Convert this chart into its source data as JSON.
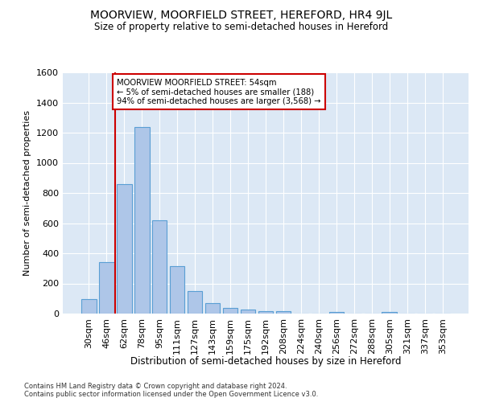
{
  "title": "MOORVIEW, MOORFIELD STREET, HEREFORD, HR4 9JL",
  "subtitle": "Size of property relative to semi-detached houses in Hereford",
  "xlabel": "Distribution of semi-detached houses by size in Hereford",
  "ylabel": "Number of semi-detached properties",
  "categories": [
    "30sqm",
    "46sqm",
    "62sqm",
    "78sqm",
    "95sqm",
    "111sqm",
    "127sqm",
    "143sqm",
    "159sqm",
    "175sqm",
    "192sqm",
    "208sqm",
    "224sqm",
    "240sqm",
    "256sqm",
    "272sqm",
    "288sqm",
    "305sqm",
    "321sqm",
    "337sqm",
    "353sqm"
  ],
  "bar_heights": [
    95,
    340,
    860,
    1240,
    620,
    315,
    150,
    72,
    40,
    28,
    15,
    18,
    0,
    0,
    12,
    0,
    0,
    10,
    0,
    0,
    0
  ],
  "bar_color": "#aec6e8",
  "bar_edge_color": "#5a9fd4",
  "vline_x": 1.5,
  "vline_color": "#cc0000",
  "annotation_text": "MOORVIEW MOORFIELD STREET: 54sqm\n← 5% of semi-detached houses are smaller (188)\n94% of semi-detached houses are larger (3,568) →",
  "annotation_box_color": "#ffffff",
  "annotation_box_edge": "#cc0000",
  "ylim": [
    0,
    1600
  ],
  "yticks": [
    0,
    200,
    400,
    600,
    800,
    1000,
    1200,
    1400,
    1600
  ],
  "footer1": "Contains HM Land Registry data © Crown copyright and database right 2024.",
  "footer2": "Contains public sector information licensed under the Open Government Licence v3.0.",
  "plot_bg_color": "#dce8f5"
}
